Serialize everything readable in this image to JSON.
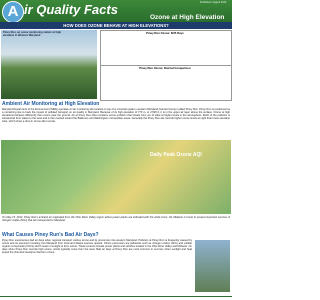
{
  "header": {
    "published": "Published: August 2013",
    "logo_letter": "A",
    "title": "ir Quality Facts",
    "subtitle": "Ozone at High Elevation"
  },
  "banner": "HOW DOES OZONE BEHAVE AT HIGH ELEVATIONS?",
  "photo": {
    "caption": "Piney Run, an ozone monitoring station at high elevation in Western Maryland"
  },
  "charts": [
    {
      "title": "Piney Run Ozone: 8/25 Days"
    },
    {
      "title": "Piney Run Ozone: Diurnal Comparison"
    }
  ],
  "section1": {
    "heading": "Ambient Air Monitoring at High Elevation",
    "text": "Maryland Department of the Environment (MDE) operates an air monitoring site located on top of a mountain peak in western Maryland (Garrett County) called Piney Run. Piney Run is positioned as a monitoring site to track the impact of polluted transport on air quality in Maryland. Because of its high elevation of 770 m, or 2,525 ft, it is in the upper air layer above the surface. Ozone at high elevations behaves differently than ozone near the ground. Air at Piney Run often contains ozone pollution that travels from out of state at higher levels in the atmosphere. Much of the pollution is transported from states to the west and is then carried toward the Baltimore and Washington metropolitan areas. Generally the Piney Run site records higher ozone levels at night than lower elevation sites, which show a drop in ozone after sunset."
  },
  "map": {
    "label": "Daily Peak Ozone AQI",
    "caption": "On May 15, 2013, Piney Run's ambient air originated from the Ohio River Valley region where power plants are indicated with the white icons; the Midwest is home to several important sources of nitrogen oxides (NOx) that are transported to Maryland."
  },
  "section2": {
    "heading": "What Causes Piney Run's Bad Air Days?",
    "text": "Piney Run experiences bad air days when regional transport carries ozone and its precursors into western Maryland. Pollution at Piney Run is frequently caused by ozone and its precursor traveling into Maryland from local and distant sources upwind. Ozone precursors are pollutants such as nitrogen oxides (NOx) and volatile organic compounds (VOCs) which react in sunlight to form ozone. These sources include power plants and vehicles located in the Ohio River Valley and Midwest. On days when Piney Run records high ozone, winds typically come from the west. Bad air days at Piney Run are most common in summer when sunlight and heat speed the chemical reactions that form ozone."
  }
}
